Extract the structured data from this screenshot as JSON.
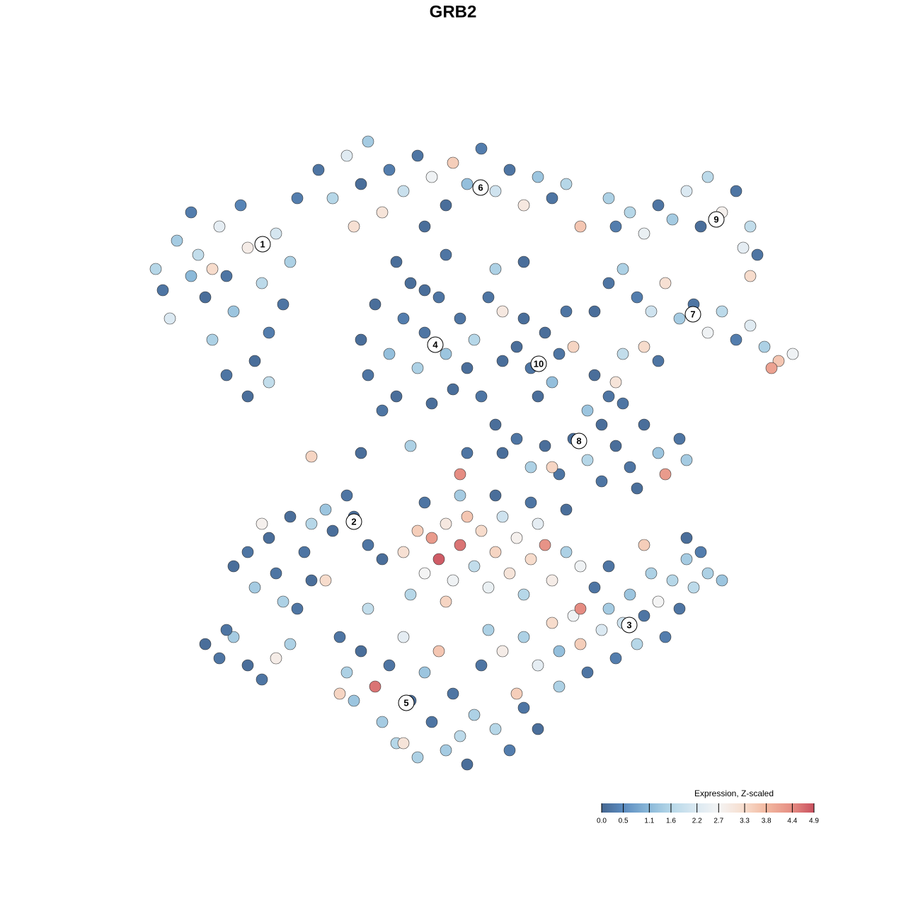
{
  "chart_data": {
    "type": "scatter",
    "title": "GRB2",
    "xlim": [
      0,
      128
    ],
    "ylim": [
      0,
      128
    ],
    "x": [
      22,
      23,
      25,
      24,
      27,
      28,
      29,
      30,
      31,
      32,
      33,
      34,
      35,
      36,
      37,
      38,
      39,
      40,
      41,
      42,
      35,
      38,
      32,
      30,
      27,
      45,
      47,
      49,
      51,
      52,
      54,
      55,
      57,
      59,
      61,
      63,
      64,
      66,
      68,
      70,
      72,
      74,
      76,
      78,
      80,
      82,
      60,
      50,
      51,
      52,
      53,
      55,
      56,
      57,
      58,
      59,
      60,
      61,
      62,
      63,
      64,
      65,
      66,
      67,
      54,
      60,
      56,
      63,
      70,
      74,
      69,
      71,
      73,
      75,
      77,
      78,
      76,
      79,
      74,
      80,
      71,
      81,
      87,
      89,
      91,
      93,
      95,
      97,
      99,
      100,
      102,
      104,
      106,
      105,
      86,
      107,
      106,
      86,
      88,
      90,
      92,
      94,
      96,
      98,
      100,
      102,
      104,
      106,
      108,
      110,
      112,
      109,
      84,
      88,
      91,
      93,
      84,
      86,
      83,
      87,
      85,
      88,
      71,
      73,
      75,
      77,
      79,
      81,
      83,
      85,
      87,
      89,
      91,
      93,
      94,
      96,
      97,
      90,
      78,
      44,
      51,
      58,
      66,
      65,
      70,
      68,
      33,
      35,
      36,
      38,
      39,
      40,
      41,
      43,
      44,
      46,
      47,
      49,
      50,
      52,
      54,
      37,
      42,
      44,
      46,
      29,
      31,
      33,
      35,
      37,
      39,
      41,
      32,
      57,
      59,
      60,
      61,
      62,
      63,
      64,
      65,
      66,
      67,
      68,
      69,
      70,
      71,
      72,
      73,
      74,
      75,
      76,
      77,
      78,
      80,
      82,
      84,
      60,
      65,
      70,
      75,
      80,
      58,
      63,
      74,
      76,
      78,
      79,
      81,
      82,
      83,
      85,
      86,
      87,
      88,
      89,
      90,
      91,
      92,
      93,
      94,
      95,
      96,
      97,
      98,
      99,
      100,
      102,
      97,
      91,
      86,
      82,
      79,
      48,
      49,
      50,
      51,
      52,
      53,
      54,
      55,
      56,
      57,
      58,
      59,
      60,
      61,
      62,
      63,
      64,
      65,
      66,
      67,
      68,
      70,
      72,
      74,
      76,
      71,
      57,
      48,
      69,
      73
    ],
    "y": [
      90,
      87,
      94,
      83,
      98,
      92,
      86,
      80,
      96,
      89,
      84,
      99,
      93,
      77,
      88,
      81,
      95,
      85,
      91,
      100,
      72,
      74,
      75,
      90,
      89,
      104,
      100,
      106,
      102,
      108,
      98,
      104,
      101,
      106,
      103,
      99,
      105,
      102,
      107,
      101,
      104,
      99,
      103,
      100,
      102,
      96,
      96,
      96,
      80,
      75,
      85,
      78,
      72,
      83,
      88,
      76,
      81,
      71,
      86,
      78,
      73,
      83,
      76,
      80,
      70,
      87,
      91,
      92,
      90,
      91,
      86,
      84,
      79,
      76,
      81,
      74,
      72,
      78,
      83,
      84,
      77,
      79,
      96,
      98,
      95,
      99,
      97,
      101,
      96,
      103,
      98,
      101,
      96,
      93,
      100,
      92,
      89,
      88,
      90,
      86,
      84,
      88,
      83,
      85,
      81,
      84,
      80,
      82,
      79,
      77,
      78,
      76,
      84,
      78,
      79,
      77,
      75,
      72,
      70,
      74,
      68,
      71,
      64,
      66,
      62,
      65,
      61,
      66,
      63,
      60,
      65,
      62,
      68,
      64,
      61,
      66,
      63,
      59,
      62,
      63.5,
      64,
      65,
      64,
      61,
      68,
      72,
      48,
      50,
      45,
      52,
      47,
      43,
      55,
      50,
      46,
      56,
      53,
      58,
      55,
      51,
      49,
      54,
      42,
      54,
      46,
      37,
      35,
      38,
      34,
      32,
      35,
      37,
      39,
      50,
      53,
      47,
      52,
      49,
      54,
      46,
      51,
      55,
      48,
      53,
      45,
      50,
      55,
      47,
      52,
      44,
      49,
      54,
      51,
      46,
      50,
      48,
      45,
      57,
      58,
      58,
      57,
      56,
      44,
      43,
      38,
      34,
      40,
      36,
      41,
      37,
      33,
      39,
      42,
      35,
      40,
      44,
      37,
      41,
      47,
      43,
      38,
      46,
      42,
      49,
      45,
      50,
      47,
      46,
      52,
      51,
      48,
      42,
      31,
      38,
      33,
      29,
      36,
      42,
      31,
      26,
      34,
      23,
      38,
      29,
      21,
      33,
      26,
      36,
      22,
      30,
      24,
      20,
      27,
      34,
      25,
      22,
      28,
      25,
      36,
      23,
      30,
      39,
      30
    ],
    "expression": [
      1.6,
      0.2,
      1.4,
      2.2,
      0.3,
      1.8,
      0.1,
      1.5,
      2.4,
      0.2,
      1.3,
      0.4,
      2.9,
      0.1,
      1.7,
      0.3,
      2.1,
      0.2,
      1.5,
      0.3,
      0.1,
      1.8,
      0.2,
      3.3,
      1.1,
      0.2,
      1.6,
      2.3,
      0.1,
      1.4,
      3.1,
      0.3,
      1.9,
      0.2,
      2.6,
      0.1,
      3.5,
      1.2,
      0.3,
      2.0,
      0.2,
      3.0,
      1.3,
      0.2,
      1.6,
      3.6,
      0.1,
      3.2,
      0.1,
      0.2,
      0.1,
      1.2,
      0.1,
      0.3,
      0.1,
      1.5,
      0.2,
      0.1,
      0.2,
      1.3,
      0.1,
      0.2,
      0.1,
      1.6,
      0.2,
      0.1,
      0.1,
      0.2,
      1.5,
      0.1,
      0.2,
      3.0,
      0.1,
      0.2,
      0.1,
      1.2,
      0.1,
      0.2,
      0.1,
      0.2,
      0.1,
      3.4,
      0.3,
      1.6,
      2.5,
      0.2,
      1.4,
      2.2,
      0.1,
      1.7,
      2.8,
      0.2,
      1.8,
      2.4,
      1.5,
      0.2,
      3.3,
      0.2,
      1.5,
      0.3,
      2.0,
      3.2,
      1.4,
      0.2,
      2.6,
      1.7,
      0.3,
      2.3,
      1.5,
      3.6,
      2.6,
      4.1,
      0.1,
      1.8,
      3.3,
      0.2,
      0.1,
      0.2,
      1.3,
      3.1,
      0.1,
      0.2,
      0.1,
      0.2,
      1.5,
      0.1,
      0.2,
      0.1,
      1.6,
      0.2,
      0.1,
      0.2,
      0.1,
      1.3,
      4.2,
      0.2,
      1.4,
      0.1,
      3.4,
      3.4,
      0.1,
      1.5,
      0.2,
      4.4,
      0.1,
      0.2,
      0.1,
      0.2,
      1.4,
      0.1,
      0.2,
      1.5,
      0.1,
      0.2,
      0.1,
      1.3,
      0.1,
      0.2,
      0.1,
      0.2,
      0.1,
      2.8,
      0.2,
      1.6,
      3.3,
      0.1,
      0.2,
      1.4,
      0.1,
      0.2,
      2.9,
      1.5,
      0.2,
      3.2,
      3.5,
      2.7,
      4.2,
      4.8,
      3.0,
      2.6,
      4.6,
      3.6,
      1.8,
      3.3,
      2.5,
      3.4,
      2.0,
      3.1,
      2.8,
      1.6,
      3.3,
      2.4,
      4.3,
      2.9,
      1.5,
      2.6,
      0.2,
      0.2,
      1.4,
      0.1,
      0.2,
      0.1,
      1.6,
      3.4,
      1.5,
      2.4,
      3.3,
      1.2,
      2.6,
      3.5,
      0.2,
      2.2,
      1.4,
      0.3,
      2.0,
      1.3,
      1.6,
      0.2,
      1.5,
      2.7,
      0.3,
      1.6,
      0.2,
      1.4,
      1.7,
      0.3,
      1.5,
      1.3,
      0.1,
      3.5,
      0.2,
      4.4,
      1.5,
      0.2,
      1.5,
      1.3,
      0.1,
      1.8,
      4.6,
      1.4,
      0.2,
      1.6,
      2.4,
      0.1,
      1.5,
      1.3,
      0.2,
      3.6,
      1.4,
      0.2,
      1.7,
      0.1,
      1.5,
      0.2,
      1.6,
      0.3,
      0.2,
      0.1,
      2.9,
      3.1,
      3.4,
      1.5,
      3.5
    ],
    "cluster_labels": [
      {
        "label": "1",
        "x": 37.1,
        "y": 93.5
      },
      {
        "label": "2",
        "x": 50,
        "y": 54.3
      },
      {
        "label": "3",
        "x": 88.9,
        "y": 39.7
      },
      {
        "label": "4",
        "x": 61.5,
        "y": 79.3
      },
      {
        "label": "5",
        "x": 57.4,
        "y": 28.7
      },
      {
        "label": "6",
        "x": 67.9,
        "y": 101.5
      },
      {
        "label": "7",
        "x": 97.9,
        "y": 83.6
      },
      {
        "label": "8",
        "x": 81.8,
        "y": 65.7
      },
      {
        "label": "9",
        "x": 101.2,
        "y": 97
      },
      {
        "label": "10",
        "x": 76.1,
        "y": 76.6
      }
    ],
    "colorbar": {
      "title": "Expression, Z-scaled",
      "ticks": [
        {
          "value": 0,
          "label": "0.0"
        },
        0.5,
        1.1,
        1.6,
        2.2,
        2.7,
        3.3,
        3.8,
        4.4,
        4.9
      ],
      "colors": [
        "#466791",
        "#5b8bbf",
        "#8bb9d9",
        "#b6d7e8",
        "#dbe9f2",
        "#f4f4f4",
        "#f7dccc",
        "#f2b8a0",
        "#e58c82",
        "#c9505f"
      ]
    }
  }
}
